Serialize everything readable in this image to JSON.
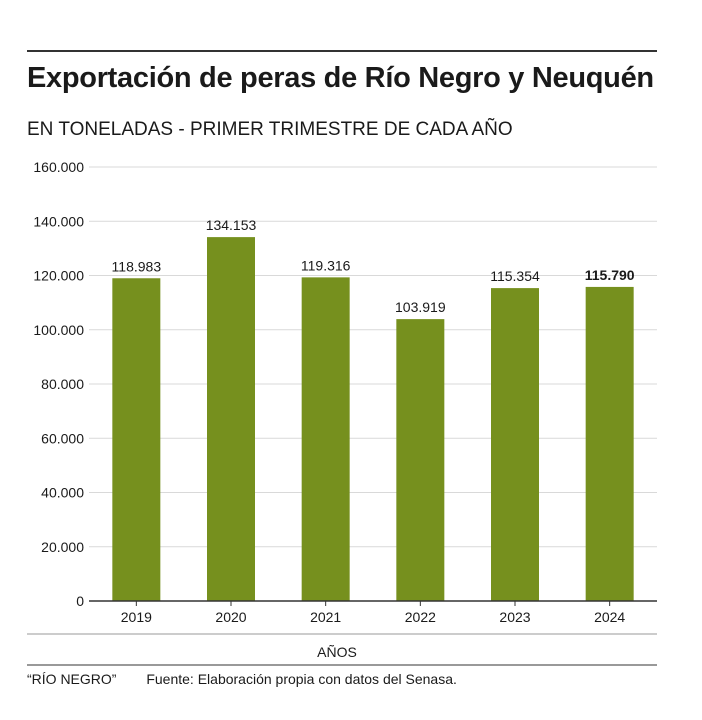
{
  "header": {
    "title": "Exportación de peras de Río Negro y Neuquén",
    "subtitle": "EN TONELADAS - PRIMER TRIMESTRE DE CADA AÑO"
  },
  "footer": {
    "brand": "“RÍO NEGRO”",
    "source": "Fuente: Elaboración propia con datos del Senasa."
  },
  "colors": {
    "bar": "#76901e",
    "grid": "#d9d9d9",
    "axis": "#333333"
  },
  "chart_data": {
    "type": "bar",
    "title": "Exportación de peras de Río Negro y Neuquén",
    "subtitle": "EN TONELADAS - PRIMER TRIMESTRE DE CADA AÑO",
    "xlabel": "AÑOS",
    "ylabel": "",
    "categories": [
      "2019",
      "2020",
      "2021",
      "2022",
      "2023",
      "2024"
    ],
    "values": [
      118983,
      134153,
      119316,
      103919,
      115354,
      115790
    ],
    "value_labels": [
      "118.983",
      "134.153",
      "119.316",
      "103.919",
      "115.354",
      "115.790"
    ],
    "ylim": [
      0,
      160000
    ],
    "yticks": [
      0,
      20000,
      40000,
      60000,
      80000,
      100000,
      120000,
      140000,
      160000
    ],
    "ytick_labels": [
      "0",
      "20.000",
      "40.000",
      "60.000",
      "80.000",
      "100.000",
      "120.000",
      "140.000",
      "160.000"
    ],
    "grid": true,
    "legend": "none"
  }
}
